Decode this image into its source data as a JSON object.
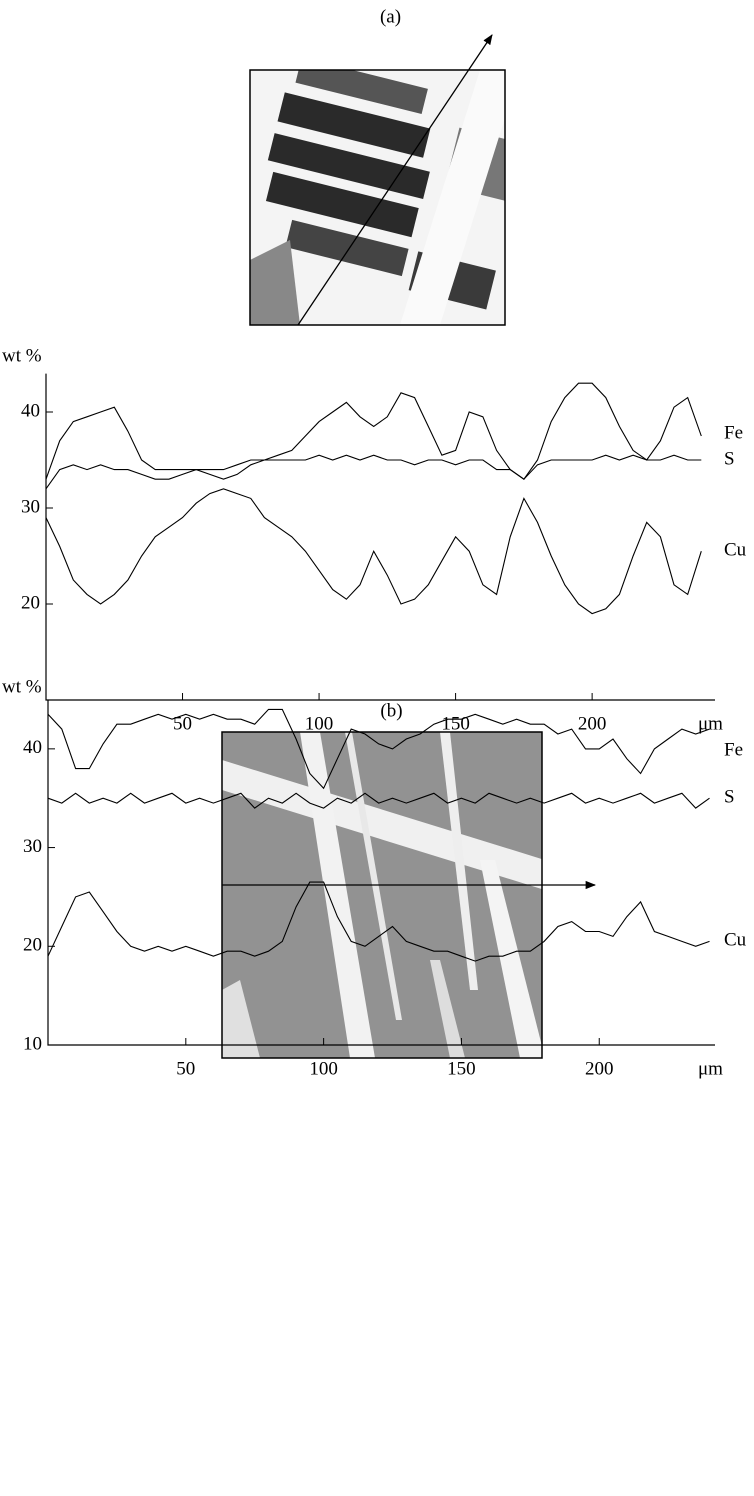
{
  "chart_data": [
    {
      "type": "line",
      "title": "(a)",
      "y_label": "wt %",
      "x_label": "μm",
      "xlim": [
        0,
        245
      ],
      "ylim": [
        10,
        44
      ],
      "xticks": [
        50,
        100,
        150,
        200
      ],
      "yticks": [
        20,
        30,
        40
      ],
      "x": [
        0,
        5,
        10,
        15,
        20,
        25,
        30,
        35,
        40,
        45,
        50,
        55,
        60,
        65,
        70,
        75,
        80,
        85,
        90,
        95,
        100,
        105,
        110,
        115,
        120,
        125,
        130,
        135,
        140,
        145,
        150,
        155,
        160,
        165,
        170,
        175,
        180,
        185,
        190,
        195,
        200,
        205,
        210,
        215,
        220,
        225,
        230,
        235,
        240
      ],
      "series": [
        {
          "name": "Fe",
          "color": "#000000",
          "values": [
            33,
            37,
            39,
            39.5,
            40,
            40.5,
            38,
            35,
            34,
            34,
            34,
            34,
            33.5,
            33,
            33.5,
            34.5,
            35,
            35.5,
            36,
            37.5,
            39,
            40,
            41,
            39.5,
            38.5,
            39.5,
            42,
            41.5,
            38.5,
            35.5,
            36,
            40,
            39.5,
            36,
            34,
            33,
            35,
            39,
            41.5,
            43,
            43,
            41.5,
            38.5,
            36,
            35,
            37,
            40.5,
            41.5,
            37.5
          ]
        },
        {
          "name": "S",
          "color": "#000000",
          "values": [
            32,
            34,
            34.5,
            34,
            34.5,
            34,
            34,
            33.5,
            33,
            33,
            33.5,
            34,
            34,
            34,
            34.5,
            35,
            35,
            35,
            35,
            35,
            35.5,
            35,
            35.5,
            35,
            35.5,
            35,
            35,
            34.5,
            35,
            35,
            34.5,
            35,
            35,
            34,
            34,
            33,
            34.5,
            35,
            35,
            35,
            35,
            35.5,
            35,
            35.5,
            35,
            35,
            35.5,
            35,
            35
          ]
        },
        {
          "name": "Cu",
          "color": "#000000",
          "values": [
            29,
            26,
            22.5,
            21,
            20,
            21,
            22.5,
            25,
            27,
            28,
            29,
            30.5,
            31.5,
            32,
            31.5,
            31,
            29,
            28,
            27,
            25.5,
            23.5,
            21.5,
            20.5,
            22,
            25.5,
            23,
            20,
            20.5,
            22,
            24.5,
            27,
            25.5,
            22,
            21,
            27,
            31,
            28.5,
            25,
            22,
            20,
            19,
            19.5,
            21,
            25,
            28.5,
            27,
            22,
            21,
            25.5
          ]
        }
      ]
    },
    {
      "type": "line",
      "title": "(b)",
      "y_label": "wt %",
      "x_label": "μm",
      "xlim": [
        0,
        242
      ],
      "ylim": [
        10,
        45
      ],
      "xticks": [
        50,
        100,
        150,
        200
      ],
      "yticks": [
        10,
        20,
        30,
        40
      ],
      "x": [
        0,
        5,
        10,
        15,
        20,
        25,
        30,
        35,
        40,
        45,
        50,
        55,
        60,
        65,
        70,
        75,
        80,
        85,
        90,
        95,
        100,
        105,
        110,
        115,
        120,
        125,
        130,
        135,
        140,
        145,
        150,
        155,
        160,
        165,
        170,
        175,
        180,
        185,
        190,
        195,
        200,
        205,
        210,
        215,
        220,
        225,
        230,
        235,
        240
      ],
      "series": [
        {
          "name": "Fe",
          "color": "#000000",
          "values": [
            43.5,
            42,
            38,
            38,
            40.5,
            42.5,
            42.5,
            43,
            43.5,
            43,
            43.5,
            43,
            43.5,
            43,
            43,
            42.5,
            44,
            44,
            41,
            37.5,
            36,
            39,
            42,
            41.5,
            40.5,
            40,
            41,
            41.5,
            42.5,
            43,
            43,
            43.5,
            43,
            42.5,
            43,
            42.5,
            42.5,
            41.5,
            42,
            40,
            40,
            41,
            39,
            37.5,
            40,
            41,
            42,
            41.5,
            42
          ]
        },
        {
          "name": "S",
          "color": "#000000",
          "values": [
            35,
            34.5,
            35.5,
            34.5,
            35,
            34.5,
            35.5,
            34.5,
            35,
            35.5,
            34.5,
            35,
            34.5,
            35,
            35.5,
            34,
            35,
            34.5,
            35.5,
            34.5,
            34,
            35,
            34.5,
            35.5,
            34.5,
            35,
            34.5,
            35,
            35.5,
            34.5,
            35,
            34.5,
            35.5,
            35,
            34.5,
            35,
            34.5,
            35,
            35.5,
            34.5,
            35,
            34.5,
            35,
            35.5,
            34.5,
            35,
            35.5,
            34,
            35
          ]
        },
        {
          "name": "Cu",
          "color": "#000000",
          "values": [
            19,
            22,
            25,
            25.5,
            23.5,
            21.5,
            20,
            19.5,
            20,
            19.5,
            20,
            19.5,
            19,
            19.5,
            19.5,
            19,
            19.5,
            20.5,
            24,
            26.5,
            26.5,
            23,
            20.5,
            20,
            21,
            22,
            20.5,
            20,
            19.5,
            19.5,
            19,
            18.5,
            19,
            19,
            19.5,
            19.5,
            20.5,
            22,
            22.5,
            21.5,
            21.5,
            21,
            23,
            24.5,
            21.5,
            21,
            20.5,
            20,
            20.5
          ]
        }
      ]
    }
  ]
}
